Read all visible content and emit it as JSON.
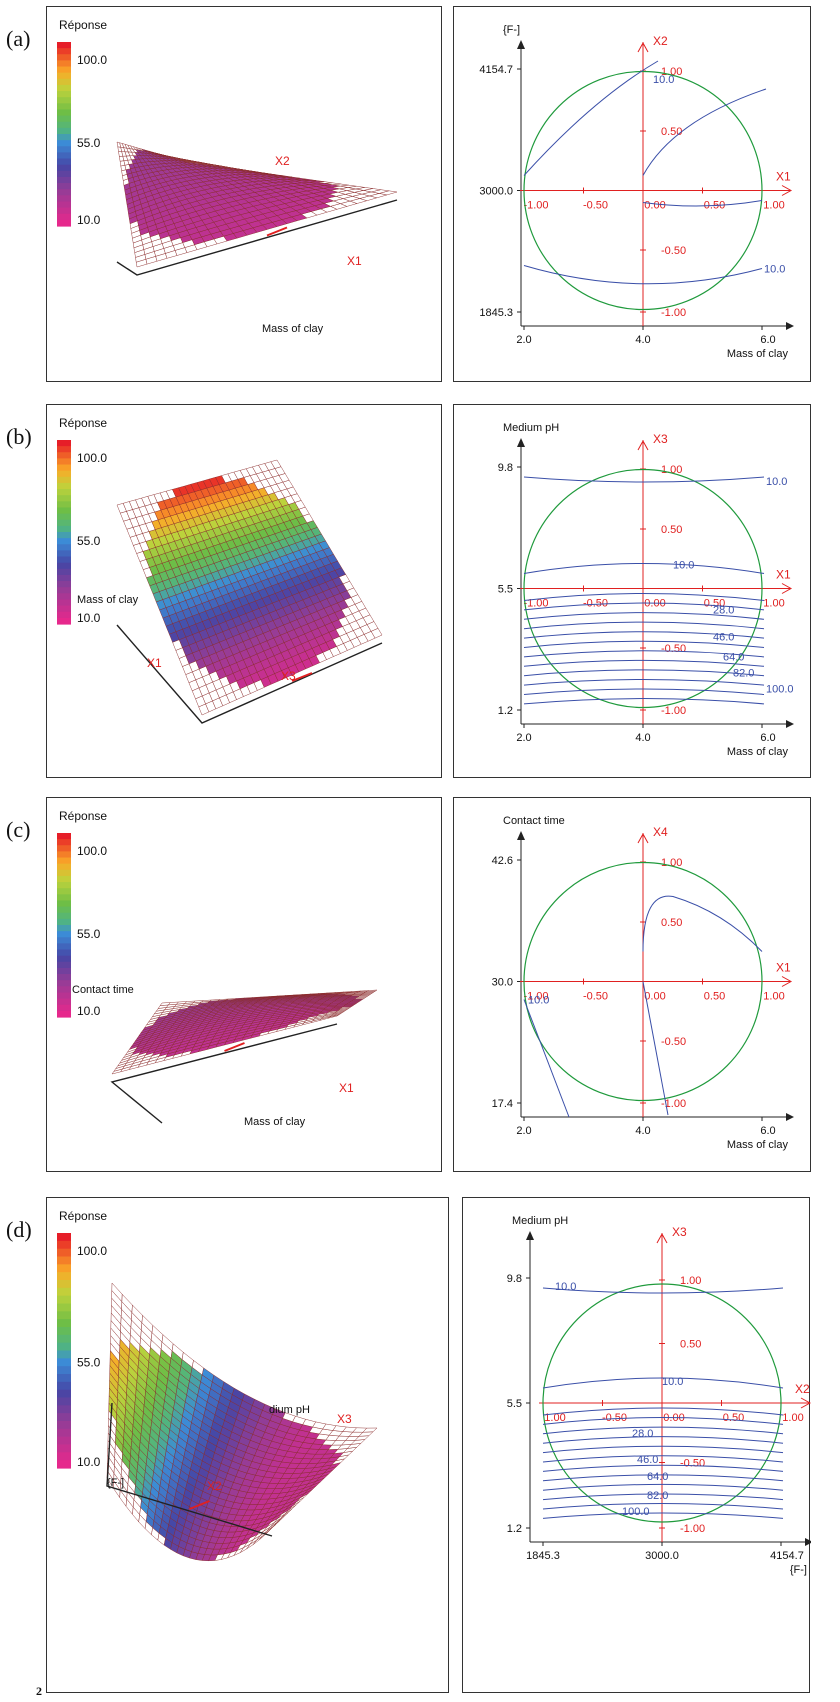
{
  "rows": [
    {
      "label": "(a)",
      "surface": {
        "legend_title": "Réponse",
        "legend_ticks": [
          "100.0",
          "55.0",
          "10.0"
        ],
        "axis_labels": [
          "X2",
          "X1"
        ],
        "caption": "Mass of clay",
        "shape": "flat"
      },
      "contour": {
        "y_title": "{F-]",
        "y_ticks": [
          "4154.7",
          "3000.0",
          "1845.3"
        ],
        "x_ticks": [
          "2.0",
          "4.0",
          "6.0"
        ],
        "x_title": "Mass of clay",
        "h_axis": "X1",
        "v_axis": "X2",
        "h_ticks": [
          "-1.00",
          "-0.50",
          "0.00",
          "0.50",
          "1.00"
        ],
        "v_ticks": [
          "1.00",
          "0.50",
          "-0.50",
          "-1.00"
        ],
        "level_labels": [
          "10.0",
          "10.0"
        ]
      }
    },
    {
      "label": "(b)",
      "surface": {
        "legend_title": "Réponse",
        "legend_ticks": [
          "100.0",
          "55.0",
          "10.0"
        ],
        "axis_labels": [
          "X1",
          "X3"
        ],
        "caption": "Mass of clay",
        "shape": "steep"
      },
      "contour": {
        "y_title": "Medium pH",
        "y_ticks": [
          "9.8",
          "5.5",
          "1.2"
        ],
        "x_ticks": [
          "2.0",
          "4.0",
          "6.0"
        ],
        "x_title": "Mass of clay",
        "h_axis": "X1",
        "v_axis": "X3",
        "h_ticks": [
          "-1.00",
          "-0.50",
          "0.00",
          "0.50",
          "1.00"
        ],
        "v_ticks": [
          "1.00",
          "0.50",
          "-0.50",
          "-1.00"
        ],
        "level_labels": [
          "10.0",
          "10.0",
          "28.0",
          "46.0",
          "64.0",
          "82.0",
          "100.0"
        ]
      }
    },
    {
      "label": "(c)",
      "surface": {
        "legend_title": "Réponse",
        "legend_ticks": [
          "100.0",
          "55.0",
          "10.0"
        ],
        "axis_labels": [
          "X1"
        ],
        "caption": "Mass of clay",
        "extra_label": "Contact time",
        "shape": "flat2"
      },
      "contour": {
        "y_title": "Contact time",
        "y_ticks": [
          "42.6",
          "30.0",
          "17.4"
        ],
        "x_ticks": [
          "2.0",
          "4.0",
          "6.0"
        ],
        "x_title": "Mass of clay",
        "h_axis": "X1",
        "v_axis": "X4",
        "h_ticks": [
          "-1.00",
          "-0.50",
          "0.00",
          "0.50",
          "1.00"
        ],
        "v_ticks": [
          "1.00",
          "0.50",
          "-0.50",
          "-1.00"
        ],
        "level_labels": [
          "10.0"
        ]
      }
    },
    {
      "label": "(d)",
      "surface": {
        "legend_title": "Réponse",
        "legend_ticks": [
          "100.0",
          "55.0",
          "10.0"
        ],
        "axis_labels": [
          "X2",
          "X3"
        ],
        "caption": "{F-]",
        "extra_label": "dium pH",
        "shape": "valley"
      },
      "contour": {
        "y_title": "Medium pH",
        "y_ticks": [
          "9.8",
          "5.5",
          "1.2"
        ],
        "x_ticks": [
          "1845.3",
          "3000.0",
          "4154.7"
        ],
        "x_title": "{F-]",
        "h_axis": "X2",
        "v_axis": "X3",
        "h_ticks": [
          "1.00",
          "-0.50",
          "0.00",
          "0.50",
          "1.00"
        ],
        "v_ticks": [
          "1.00",
          "0.50",
          "-0.50",
          "-1.00"
        ],
        "level_labels": [
          "10.0",
          "10.0",
          "28.0",
          "46.0",
          "64.0",
          "82.0",
          "100.0"
        ]
      }
    }
  ],
  "corner_note": "2",
  "colors": {
    "axis_red": "#e02020",
    "contour_blue": "#3a4fa8",
    "circle_green": "#1f9a3c",
    "mesh": "#8a2a2a"
  },
  "chart_data": [
    {
      "type": "contour",
      "panel": "(a)",
      "ylabel": "{F-]",
      "xlabel": "Mass of clay",
      "xlim": [
        2.0,
        6.0
      ],
      "ylim": [
        1845.3,
        4154.7
      ],
      "levels": [
        10.0
      ]
    },
    {
      "type": "contour",
      "panel": "(b)",
      "ylabel": "Medium pH",
      "xlabel": "Mass of clay",
      "xlim": [
        2.0,
        6.0
      ],
      "ylim": [
        1.2,
        9.8
      ],
      "levels": [
        10.0,
        28.0,
        46.0,
        64.0,
        82.0,
        100.0
      ]
    },
    {
      "type": "contour",
      "panel": "(c)",
      "ylabel": "Contact time",
      "xlabel": "Mass of clay",
      "xlim": [
        2.0,
        6.0
      ],
      "ylim": [
        17.4,
        42.6
      ],
      "levels": [
        10.0
      ]
    },
    {
      "type": "contour",
      "panel": "(d)",
      "ylabel": "Medium pH",
      "xlabel": "{F-]",
      "xlim": [
        1845.3,
        4154.7
      ],
      "ylim": [
        1.2,
        9.8
      ],
      "levels": [
        10.0,
        28.0,
        46.0,
        64.0,
        82.0,
        100.0
      ]
    },
    {
      "type": "surface",
      "legend_title": "Réponse",
      "colorbar_range": [
        10.0,
        100.0
      ],
      "colorbar_ticks": [
        100.0,
        55.0,
        10.0
      ]
    }
  ]
}
